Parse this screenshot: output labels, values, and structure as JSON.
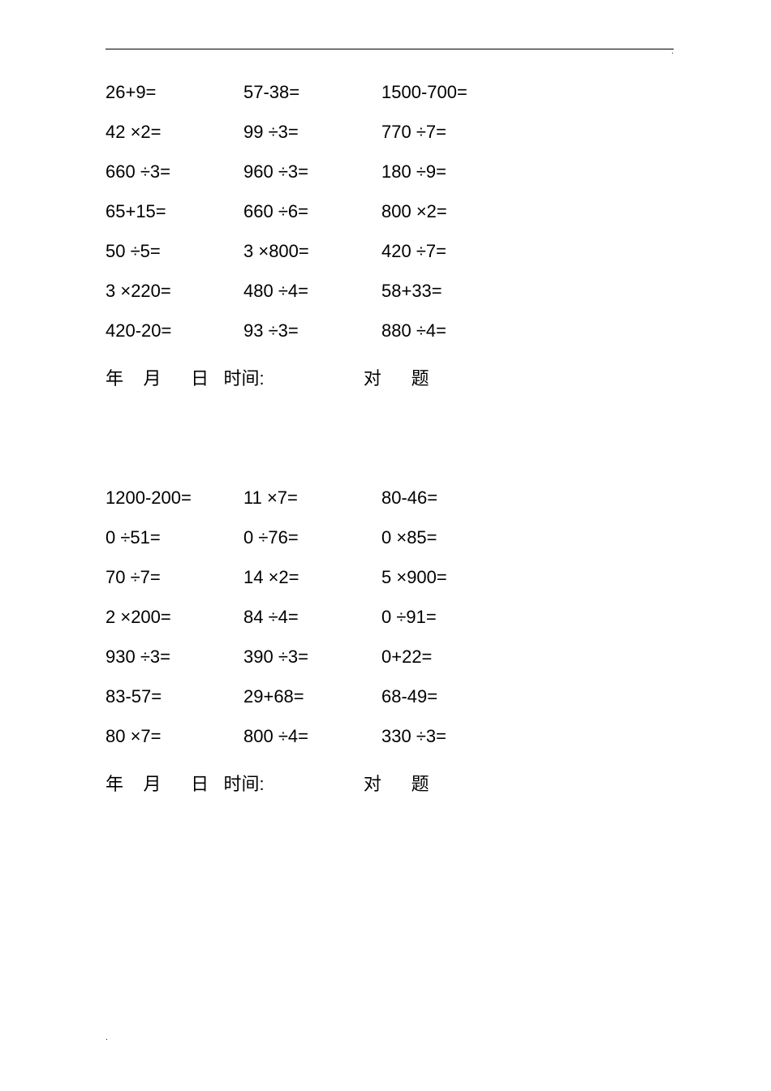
{
  "worksheets": [
    {
      "rows": [
        [
          "26+9=",
          "57-38=",
          "1500-700="
        ],
        [
          "42 ×2=",
          "99   ÷3=",
          "770   ÷7="
        ],
        [
          "660 ÷3=",
          "960   ÷3=",
          "180   ÷9="
        ],
        [
          "65+15=",
          "660   ÷6=",
          "800   ×2="
        ],
        [
          "50 ÷5=",
          "3   ×800=",
          "420   ÷7="
        ],
        [
          "3 ×220=",
          "480   ÷4=",
          "58+33="
        ],
        [
          "420-20=",
          "93   ÷3=",
          "880   ÷4="
        ]
      ],
      "footer": {
        "year": "年",
        "month": "月",
        "day": "日",
        "time_label": "时间:",
        "correct": "对",
        "problems": "题"
      }
    },
    {
      "rows": [
        [
          "1200-200=",
          "11   ×7=",
          "80-46="
        ],
        [
          "0 ÷51=",
          "0   ÷76=",
          "0   ×85="
        ],
        [
          "70 ÷7=",
          "14   ×2=",
          "5   ×900="
        ],
        [
          "2 ×200=",
          "84   ÷4=",
          "0   ÷91="
        ],
        [
          "930 ÷3=",
          "390   ÷3=",
          "0+22="
        ],
        [
          "83-57=",
          "29+68=",
          "68-49="
        ],
        [
          "80 ×7=",
          "800   ÷4=",
          "330   ÷3="
        ]
      ],
      "footer": {
        "year": "年",
        "month": "月",
        "day": "日",
        "time_label": "时间:",
        "correct": "对",
        "problems": "题"
      }
    }
  ]
}
